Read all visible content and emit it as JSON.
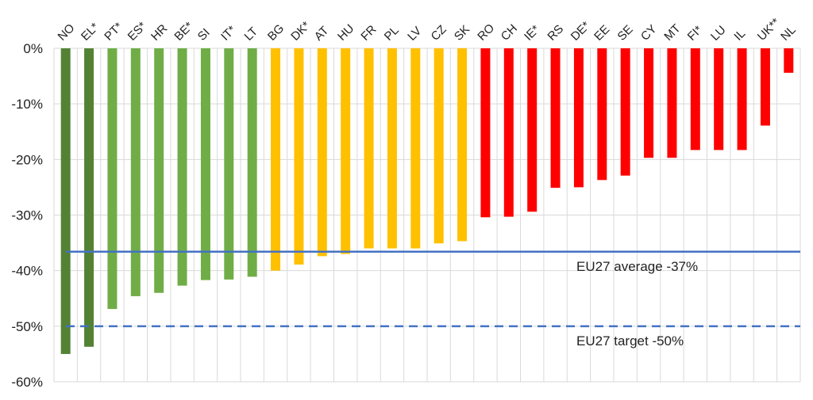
{
  "chart_data": {
    "type": "bar",
    "categories": [
      "NO",
      "EL*",
      "PT*",
      "ES*",
      "HR",
      "BE*",
      "SI",
      "IT*",
      "LT",
      "BG",
      "DK*",
      "AT",
      "HU",
      "FR",
      "PL",
      "LV",
      "CZ",
      "SK",
      "RO",
      "CH",
      "IE*",
      "RS",
      "DE*",
      "EE",
      "SE",
      "CY",
      "MT",
      "FI*",
      "LU",
      "IL",
      "UK**",
      "NL"
    ],
    "values": [
      -55.0,
      -53.7,
      -46.9,
      -44.6,
      -44.0,
      -42.7,
      -41.7,
      -41.6,
      -41.1,
      -40.0,
      -38.9,
      -37.4,
      -37.0,
      -36.0,
      -36.0,
      -36.0,
      -35.1,
      -34.7,
      -30.4,
      -30.3,
      -29.4,
      -25.1,
      -25.0,
      -23.7,
      -22.9,
      -19.7,
      -19.7,
      -18.3,
      -18.3,
      -18.3,
      -13.9,
      -4.4
    ],
    "colors": [
      "#548235",
      "#548235",
      "#70ad47",
      "#70ad47",
      "#70ad47",
      "#70ad47",
      "#70ad47",
      "#70ad47",
      "#70ad47",
      "#ffc000",
      "#ffc000",
      "#ffc000",
      "#ffc000",
      "#ffc000",
      "#ffc000",
      "#ffc000",
      "#ffc000",
      "#ffc000",
      "#ff0000",
      "#ff0000",
      "#ff0000",
      "#ff0000",
      "#ff0000",
      "#ff0000",
      "#ff0000",
      "#ff0000",
      "#ff0000",
      "#ff0000",
      "#ff0000",
      "#ff0000",
      "#ff0000",
      "#ff0000"
    ],
    "ylim": [
      -60,
      0
    ],
    "yticks": [
      0,
      -10,
      -20,
      -30,
      -40,
      -50,
      -60
    ],
    "ytick_labels": [
      "0%",
      "-10%",
      "-20%",
      "-30%",
      "-40%",
      "-50%",
      "-60%"
    ],
    "grid": true,
    "reference_lines": [
      {
        "label": "EU27 average -37%",
        "value": -36.6,
        "style": "solid",
        "color": "#4472c4"
      },
      {
        "label": "EU27 target -50%",
        "value": -50,
        "style": "dashed",
        "color": "#4472c4"
      }
    ]
  }
}
